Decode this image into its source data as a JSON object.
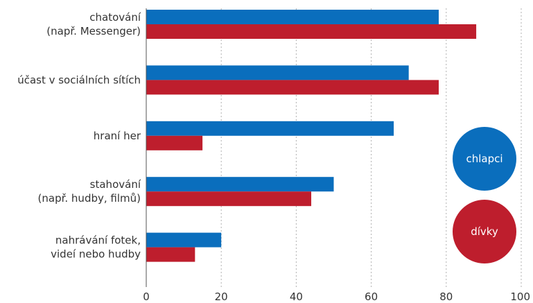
{
  "chart_data": {
    "type": "bar",
    "orientation": "horizontal",
    "categories": [
      [
        "chatování",
        "(např. Messenger)"
      ],
      [
        "účast v sociálních sítích"
      ],
      [
        "hraní her"
      ],
      [
        "stahování",
        "(např. hudby, filmů)"
      ],
      [
        "nahrávání fotek,",
        "videí nebo hudby"
      ]
    ],
    "series": [
      {
        "name": "chlapci",
        "color": "#0a6ebd",
        "values": [
          78,
          70,
          66,
          50,
          20
        ]
      },
      {
        "name": "dívky",
        "color": "#be1e2d",
        "values": [
          88,
          78,
          15,
          44,
          13
        ]
      }
    ],
    "xlim": [
      0,
      100
    ],
    "xticks": [
      0,
      20,
      40,
      60,
      80,
      100
    ],
    "grid": "vertical dotted",
    "legend": "right (circles)"
  }
}
